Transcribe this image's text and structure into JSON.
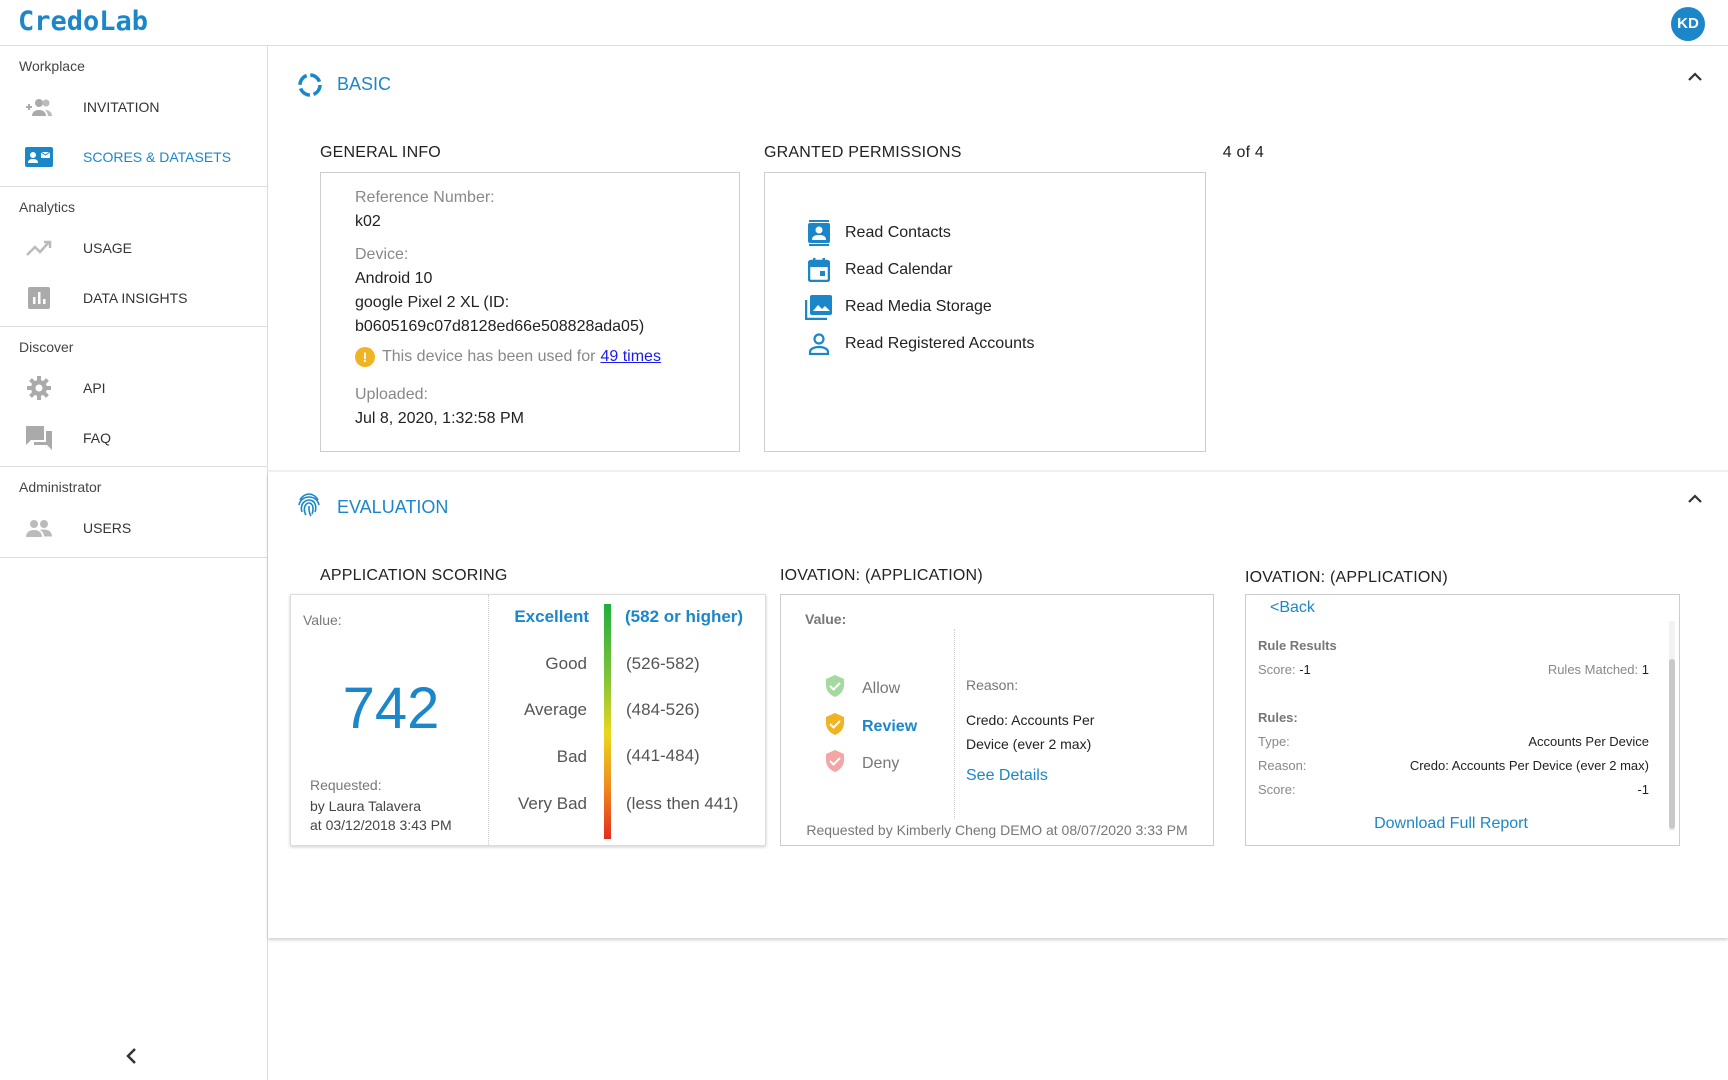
{
  "app": {
    "logo": "CredoLab",
    "avatar_initials": "KD"
  },
  "sidebar": {
    "groups": [
      {
        "title": "Workplace",
        "items": [
          {
            "label": "INVITATION",
            "icon": "add-user-icon",
            "active": false
          },
          {
            "label": "SCORES & DATASETS",
            "icon": "id-card-icon",
            "active": true
          }
        ]
      },
      {
        "title": "Analytics",
        "items": [
          {
            "label": "USAGE",
            "icon": "trending-up-icon",
            "active": false
          },
          {
            "label": "DATA INSIGHTS",
            "icon": "bar-chart-icon",
            "active": false
          }
        ]
      },
      {
        "title": "Discover",
        "items": [
          {
            "label": "API",
            "icon": "gear-icon",
            "active": false
          },
          {
            "label": "FAQ",
            "icon": "chat-icon",
            "active": false
          }
        ]
      },
      {
        "title": "Administrator",
        "items": [
          {
            "label": "USERS",
            "icon": "users-icon",
            "active": false
          }
        ]
      }
    ],
    "collapse_icon": "chevron-left-icon"
  },
  "basic": {
    "title": "BASIC",
    "general_info": {
      "title": "GENERAL INFO",
      "ref_label": "Reference Number:",
      "ref_value": "k02",
      "device_label": "Device:",
      "device_os": "Android 10",
      "device_model_line1": "google Pixel 2 XL (ID:",
      "device_model_line2": "b0605169c07d8128ed66e508828ada05)",
      "warning_text": "This device has been used for",
      "warning_link": "49 times",
      "uploaded_label": "Uploaded:",
      "uploaded_value": "Jul 8, 2020, 1:32:58 PM"
    },
    "permissions": {
      "title": "GRANTED PERMISSIONS",
      "count": "4 of 4",
      "items": [
        {
          "label": "Read Contacts",
          "icon": "contacts-icon"
        },
        {
          "label": "Read Calendar",
          "icon": "calendar-icon"
        },
        {
          "label": "Read Media Storage",
          "icon": "media-icon"
        },
        {
          "label": "Read Registered Accounts",
          "icon": "person-icon"
        }
      ]
    }
  },
  "evaluation": {
    "title": "EVALUATION",
    "scoring": {
      "title": "APPLICATION SCORING",
      "value_label": "Value:",
      "value": "742",
      "requested_label": "Requested:",
      "requested_by": "by Laura Talavera",
      "requested_at": "at 03/12/2018 3:43 PM",
      "scale": [
        {
          "label": "Excellent",
          "range": "(582 or higher)",
          "active": true
        },
        {
          "label": "Good",
          "range": "(526-582)",
          "active": false
        },
        {
          "label": "Average",
          "range": "(484-526)",
          "active": false
        },
        {
          "label": "Bad",
          "range": "(441-484)",
          "active": false
        },
        {
          "label": "Very Bad",
          "range": "(less then 441)",
          "active": false
        }
      ]
    },
    "iovation1": {
      "title": "IOVATION: (APPLICATION)",
      "value_label": "Value:",
      "options": [
        {
          "label": "Allow",
          "active": false,
          "color": "#a6d9a0"
        },
        {
          "label": "Review",
          "active": true,
          "color": "#f0b323"
        },
        {
          "label": "Deny",
          "active": false,
          "color": "#f4a6a6"
        }
      ],
      "reason_label": "Reason:",
      "reason_line1": "Credo: Accounts Per",
      "reason_line2": "Device (ever 2 max)",
      "see_details": "See Details",
      "footer": "Requested by Kimberly Cheng DEMO at 08/07/2020 3:33 PM"
    },
    "iovation2": {
      "title": "IOVATION: (APPLICATION)",
      "back": "<Back",
      "rule_results": "Rule Results",
      "score_label": "Score:",
      "score_value": "-1",
      "rules_matched_label": "Rules Matched:",
      "rules_matched_value": "1",
      "rules_label": "Rules:",
      "type_label": "Type:",
      "type_value": "Accounts Per Device",
      "reason_label": "Reason:",
      "reason_value": "Credo: Accounts Per Device (ever 2 max)",
      "score2_label": "Score:",
      "score2_value": "-1",
      "download": "Download Full Report"
    }
  },
  "colors": {
    "accent": "#1b87c9",
    "warning": "#f0b323"
  }
}
